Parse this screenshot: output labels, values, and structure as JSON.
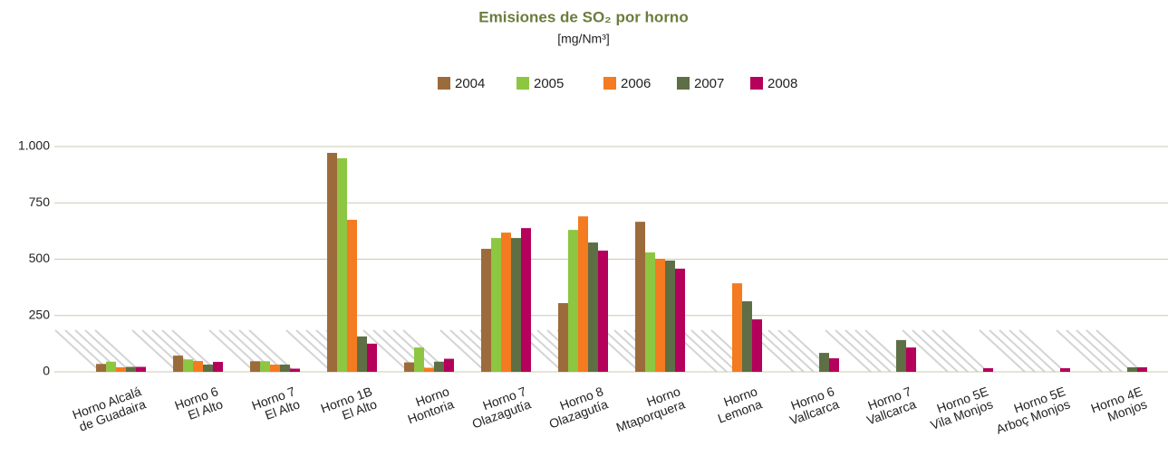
{
  "chart_data": {
    "type": "bar",
    "title": "Emisiones de SO₂ por horno",
    "subtitle": "[mg/Nm³]",
    "categories": [
      [
        "Horno Alcalá",
        "de Guadaira"
      ],
      [
        "Horno 6",
        "El Alto"
      ],
      [
        "Horno 7",
        "El Alto"
      ],
      [
        "Horno 1B",
        "El Alto"
      ],
      [
        "Horno",
        "Hontoria"
      ],
      [
        "Horno 7",
        "Olazagutía"
      ],
      [
        "Horno 8",
        "Olazagutía"
      ],
      [
        "Horno",
        "Mtaporquera"
      ],
      [
        "Horno",
        "Lemona"
      ],
      [
        "Horno 6",
        "Vallcarca"
      ],
      [
        "Horno 7",
        "Vallcarca"
      ],
      [
        "Horno 5E",
        "Vila Monjos"
      ],
      [
        "Horno 5E",
        "Arboç Monjos"
      ],
      [
        "Horno 4E",
        "Monjos"
      ]
    ],
    "series": [
      {
        "name": "2004",
        "color": "#9c6b3b",
        "values": [
          35,
          72,
          47,
          972,
          42,
          546,
          305,
          666,
          null,
          null,
          null,
          null,
          null,
          null
        ]
      },
      {
        "name": "2005",
        "color": "#8dc641",
        "values": [
          45,
          55,
          47,
          948,
          108,
          594,
          630,
          530,
          null,
          null,
          null,
          null,
          null,
          null
        ]
      },
      {
        "name": "2006",
        "color": "#f47b20",
        "values": [
          20,
          48,
          32,
          675,
          18,
          618,
          690,
          502,
          393,
          null,
          null,
          null,
          null,
          null
        ]
      },
      {
        "name": "2007",
        "color": "#5e6e45",
        "values": [
          22,
          32,
          32,
          157,
          45,
          594,
          574,
          494,
          313,
          84,
          141,
          null,
          null,
          20
        ]
      },
      {
        "name": "2008",
        "color": "#b5005c",
        "values": [
          22,
          44,
          14,
          125,
          58,
          638,
          538,
          458,
          233,
          60,
          108,
          16,
          16,
          20
        ]
      }
    ],
    "ylim": [
      0,
      1000
    ],
    "yticks": [
      0,
      250,
      500,
      750,
      {
        "value": 1000,
        "label": "1.000"
      }
    ],
    "grid": true,
    "legend": "top"
  }
}
